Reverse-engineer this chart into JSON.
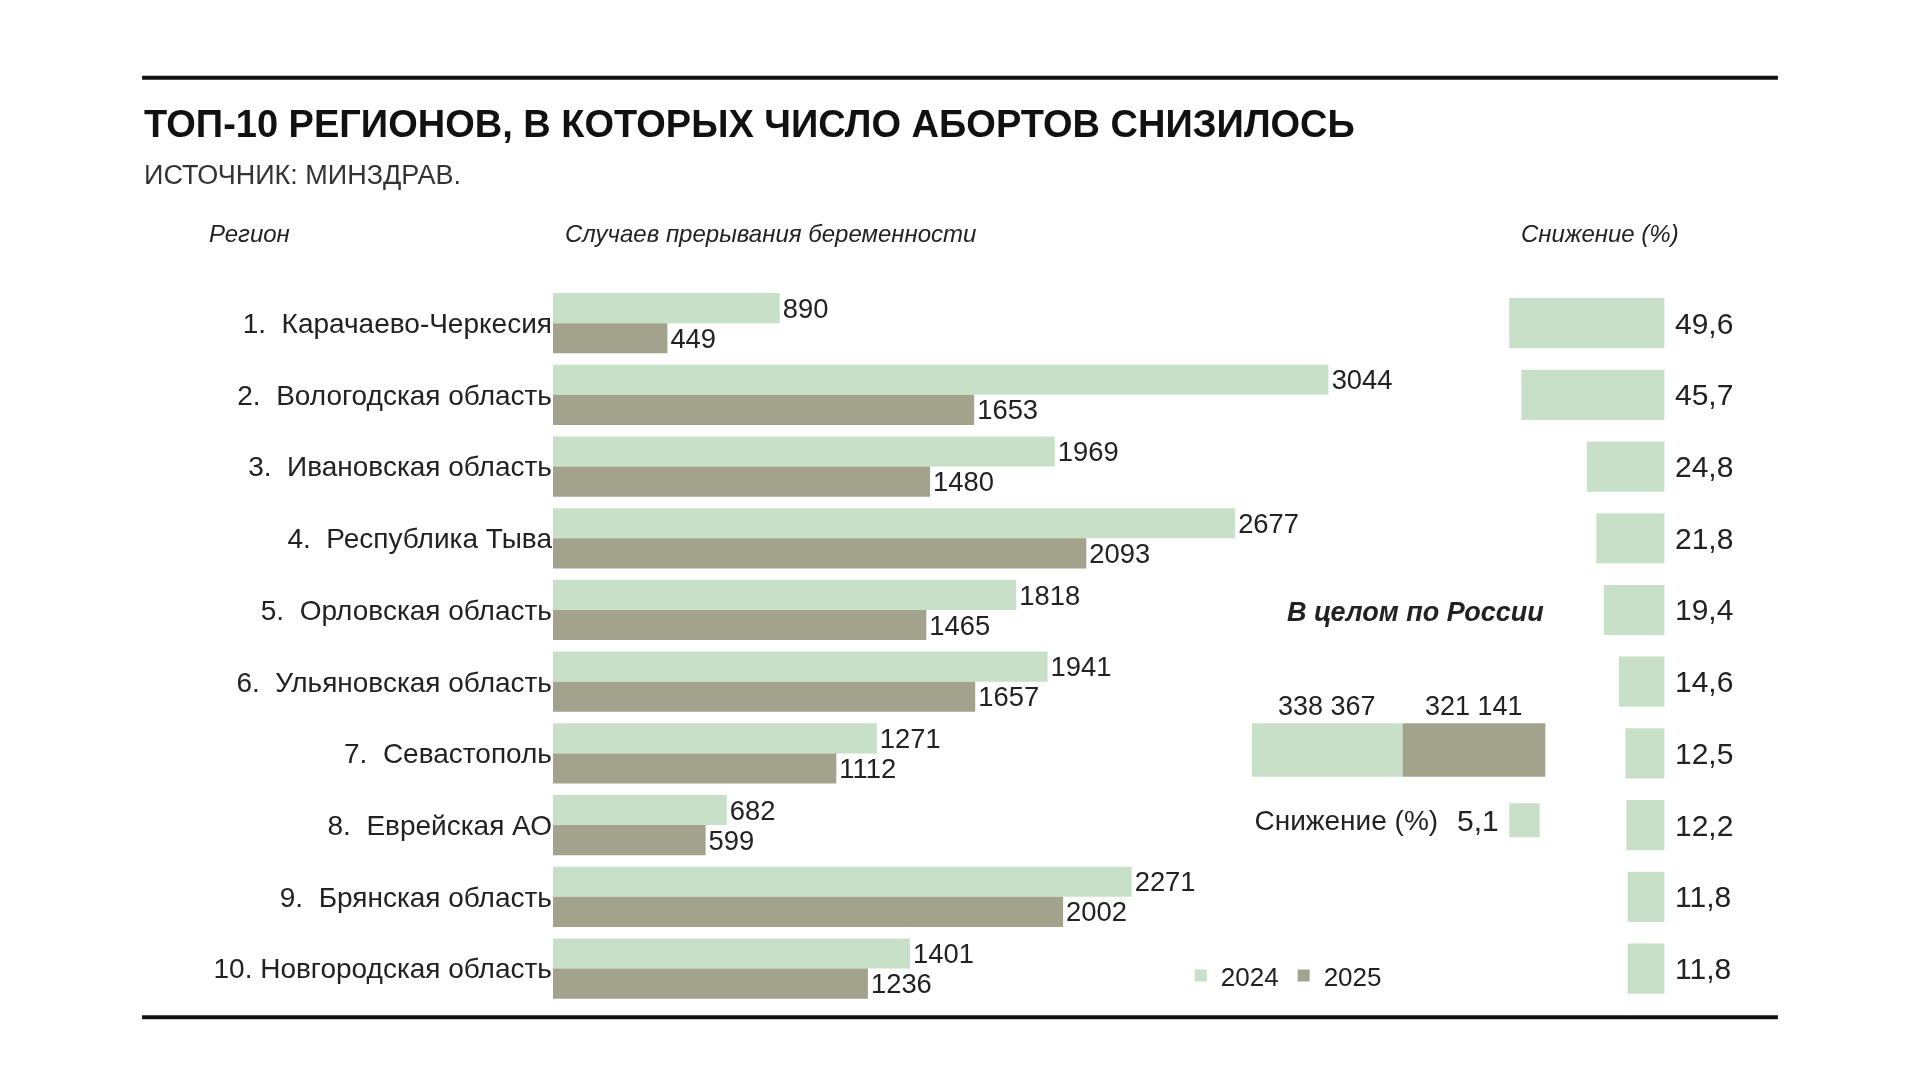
{
  "chart_data": [
    {
      "type": "bar",
      "orientation": "horizontal",
      "title": "ТОП-10 РЕГИОНОВ, В КОТОРЫХ ЧИСЛО АБОРТОВ СНИЗИЛОСЬ",
      "subtitle": "ИСТОЧНИК: МИНЗДРАВ.",
      "ylabel": "Регион",
      "xlabel": "Случаев прерывания беременности",
      "categories": [
        "1.  Карачаево-Черкесия",
        "2.  Вологодская область",
        "3.  Ивановская область",
        "4.  Республика Тыва",
        "5.  Орловская область",
        "6.  Ульяновская область",
        "7.  Севастополь",
        "8.  Еврейская АО",
        "9.  Брянская область",
        "10. Новгородская область"
      ],
      "series": [
        {
          "name": "2024",
          "color": "#c9e0c8",
          "values": [
            890,
            3044,
            1969,
            2677,
            1818,
            1941,
            1271,
            682,
            2271,
            1401
          ]
        },
        {
          "name": "2025",
          "color": "#a3a28c",
          "values": [
            449,
            1653,
            1480,
            2093,
            1465,
            1657,
            1112,
            599,
            2002,
            1236
          ]
        }
      ],
      "data_labels": true,
      "legend": "bottom right"
    },
    {
      "type": "bar",
      "orientation": "horizontal",
      "xlabel": "Снижение (%)",
      "categories": [
        null,
        null,
        null,
        null,
        null,
        null,
        null,
        null,
        null,
        null
      ],
      "values": [
        49.6,
        45.7,
        24.8,
        21.8,
        19.4,
        14.6,
        12.5,
        12.2,
        11.8,
        11.8
      ],
      "value_labels": [
        "49,6",
        "45,7",
        "24,8",
        "21,8",
        "19,4",
        "14,6",
        "12,5",
        "12,2",
        "11,8",
        "11,8"
      ],
      "color": "#c9e0c8",
      "xlim": [
        49.6,
        0
      ]
    },
    {
      "type": "bar",
      "orientation": "horizontal",
      "stacked": true,
      "title": "В целом по России",
      "categories": [
        null
      ],
      "series": [
        {
          "color": "#c9e0c8",
          "values": [
            338367
          ],
          "value_labels": [
            "338 367"
          ]
        },
        {
          "color": "#a3a28c",
          "values": [
            321141
          ],
          "value_labels": [
            "321 141"
          ]
        }
      ]
    },
    {
      "type": "bar",
      "orientation": "horizontal",
      "categories": [
        "Снижение (%)"
      ],
      "values": [
        5.1
      ],
      "value_labels": [
        "5,1"
      ],
      "color": "#c9e0c8"
    }
  ]
}
